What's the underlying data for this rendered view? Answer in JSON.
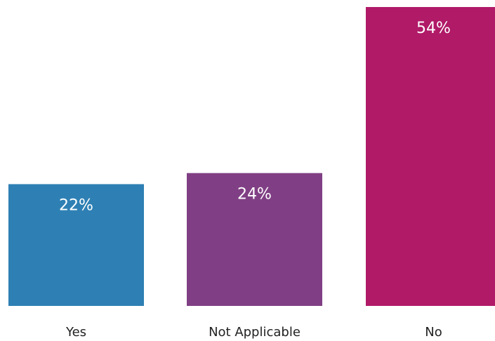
{
  "chart_data": {
    "type": "bar",
    "categories": [
      "Yes",
      "Not Applicable",
      "No"
    ],
    "values": [
      22,
      24,
      54
    ],
    "value_labels": [
      "22%",
      "24%",
      "54%"
    ],
    "colors": [
      "#2e80b4",
      "#803f84",
      "#b01a67"
    ],
    "unit": "%",
    "ylim": [
      0,
      54
    ],
    "grid": false,
    "legend": "none",
    "axis_visible": false
  }
}
